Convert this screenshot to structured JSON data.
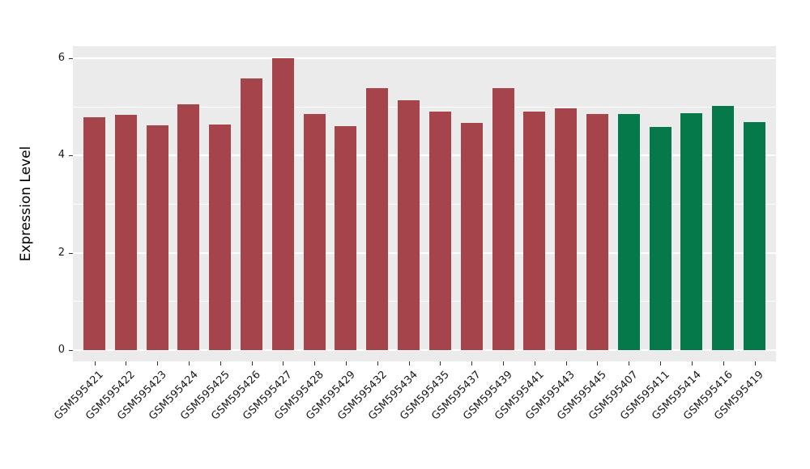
{
  "chart_data": {
    "type": "bar",
    "title": "",
    "xlabel": "",
    "ylabel": "Expression Level",
    "ylim": [
      0,
      6.25
    ],
    "yticks": [
      0,
      2,
      4,
      6
    ],
    "yticks_minor": [
      1,
      3,
      5
    ],
    "grid": "on",
    "legend": "none",
    "panel_bg": "#EBEBEB",
    "grid_color": "#FFFFFF",
    "categories": [
      "GSM595421",
      "GSM595422",
      "GSM595423",
      "GSM595424",
      "GSM595425",
      "GSM595426",
      "GSM595427",
      "GSM595428",
      "GSM595429",
      "GSM595432",
      "GSM595434",
      "GSM595435",
      "GSM595437",
      "GSM595439",
      "GSM595441",
      "GSM595443",
      "GSM595445",
      "GSM595407",
      "GSM595411",
      "GSM595414",
      "GSM595416",
      "GSM595419"
    ],
    "values": [
      4.79,
      4.84,
      4.62,
      5.05,
      4.64,
      5.58,
      6.0,
      4.85,
      4.6,
      5.38,
      5.13,
      4.9,
      4.67,
      5.38,
      4.9,
      4.97,
      4.85,
      4.85,
      4.59,
      4.87,
      5.02,
      4.69
    ],
    "groups": [
      "red",
      "red",
      "red",
      "red",
      "red",
      "red",
      "red",
      "red",
      "red",
      "red",
      "red",
      "red",
      "red",
      "red",
      "red",
      "red",
      "red",
      "green",
      "green",
      "green",
      "green",
      "green"
    ],
    "colors": {
      "red": "#A6444C",
      "green": "#06794A"
    }
  }
}
